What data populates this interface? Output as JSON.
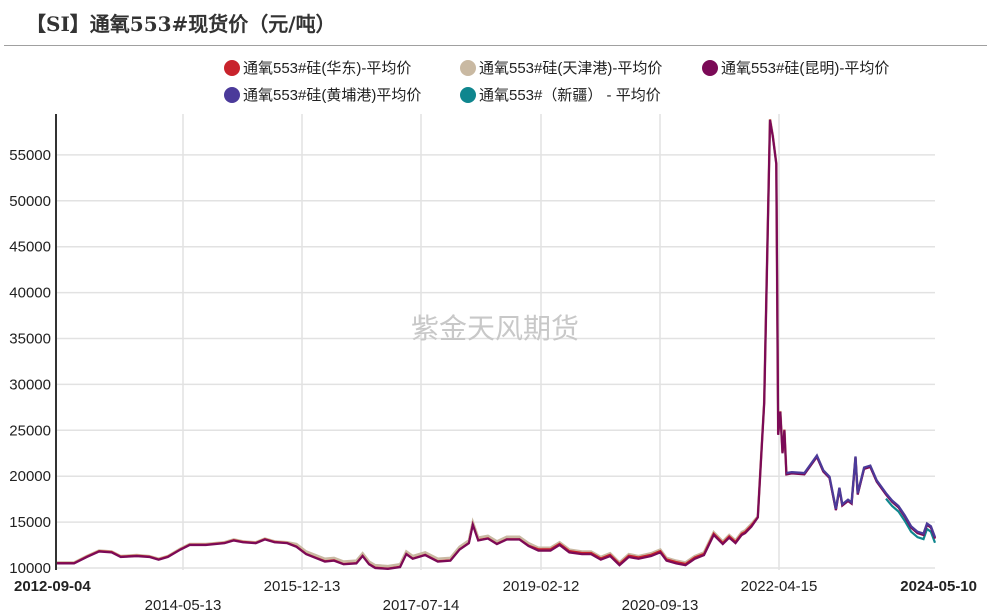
{
  "header": {
    "title": "【SI】通氧553#现货价（元/吨）"
  },
  "watermark": "紫金天风期货",
  "legend": [
    {
      "label": "通氧553#硅(华东)-平均价",
      "color": "#c8232c"
    },
    {
      "label": "通氧553#硅(天津港)-平均价",
      "color": "#c9b9a2"
    },
    {
      "label": "通氧553#硅(昆明)-平均价",
      "color": "#7b0a57"
    },
    {
      "label": "通氧553#硅(黄埔港)平均价",
      "color": "#4b3a9a"
    },
    {
      "label": "通氧553#（新疆） - 平均价",
      "color": "#0f868e"
    }
  ],
  "axes": {
    "y_ticks": [
      "10000",
      "15000",
      "20000",
      "25000",
      "30000",
      "35000",
      "40000",
      "45000",
      "50000",
      "55000"
    ],
    "x_ticks_row1": [
      {
        "label": "2012-09-04",
        "bold": true
      },
      {
        "label": "2015-12-13",
        "bold": false
      },
      {
        "label": "2019-02-12",
        "bold": false
      },
      {
        "label": "2022-04-15",
        "bold": false
      },
      {
        "label": "2024-05-10",
        "bold": true
      }
    ],
    "x_ticks_row2": [
      {
        "label": "2014-05-13"
      },
      {
        "label": "2017-07-14"
      },
      {
        "label": "2020-09-13"
      }
    ]
  },
  "chart_data": {
    "type": "line",
    "title": "【SI】通氧553#现货价（元/吨）",
    "xlabel": "",
    "ylabel": "元/吨",
    "ylim": [
      10000,
      59000
    ],
    "xlim": [
      "2012-09-04",
      "2024-05-10"
    ],
    "grid": true,
    "legend_position": "top",
    "x_tick_labels": [
      "2012-09-04",
      "2014-05-13",
      "2015-12-13",
      "2017-07-14",
      "2019-02-12",
      "2020-09-13",
      "2022-04-15",
      "2024-05-10"
    ],
    "series": [
      {
        "name": "通氧553#硅(昆明)-平均价",
        "color": "#7b0a57",
        "points": [
          [
            "2012-09-04",
            10500
          ],
          [
            "2012-12-01",
            10500
          ],
          [
            "2013-02-01",
            11200
          ],
          [
            "2013-04-01",
            11800
          ],
          [
            "2013-06-01",
            11700
          ],
          [
            "2013-07-15",
            11200
          ],
          [
            "2013-10-01",
            11300
          ],
          [
            "2013-12-01",
            11200
          ],
          [
            "2014-01-15",
            10900
          ],
          [
            "2014-03-01",
            11200
          ],
          [
            "2014-05-01",
            12000
          ],
          [
            "2014-06-15",
            12500
          ],
          [
            "2014-09-01",
            12500
          ],
          [
            "2014-12-01",
            12700
          ],
          [
            "2015-01-15",
            13000
          ],
          [
            "2015-03-01",
            12800
          ],
          [
            "2015-05-01",
            12700
          ],
          [
            "2015-06-15",
            13100
          ],
          [
            "2015-08-01",
            12800
          ],
          [
            "2015-10-01",
            12700
          ],
          [
            "2015-11-15",
            12300
          ],
          [
            "2016-01-01",
            11500
          ],
          [
            "2016-02-15",
            11100
          ],
          [
            "2016-04-01",
            10700
          ],
          [
            "2016-05-15",
            10800
          ],
          [
            "2016-07-01",
            10400
          ],
          [
            "2016-09-01",
            10500
          ],
          [
            "2016-10-01",
            11300
          ],
          [
            "2016-11-01",
            10400
          ],
          [
            "2016-12-01",
            10000
          ],
          [
            "2017-02-01",
            9900
          ],
          [
            "2017-04-01",
            10100
          ],
          [
            "2017-05-01",
            11500
          ],
          [
            "2017-06-01",
            11000
          ],
          [
            "2017-08-01",
            11400
          ],
          [
            "2017-10-01",
            10700
          ],
          [
            "2017-12-01",
            10800
          ],
          [
            "2018-01-15",
            12000
          ],
          [
            "2018-03-01",
            12700
          ],
          [
            "2018-03-20",
            14700
          ],
          [
            "2018-04-15",
            13000
          ],
          [
            "2018-06-01",
            13200
          ],
          [
            "2018-07-15",
            12600
          ],
          [
            "2018-09-01",
            13100
          ],
          [
            "2018-11-01",
            13100
          ],
          [
            "2018-12-15",
            12400
          ],
          [
            "2019-02-01",
            11900
          ],
          [
            "2019-04-01",
            11900
          ],
          [
            "2019-05-15",
            12500
          ],
          [
            "2019-07-01",
            11700
          ],
          [
            "2019-09-01",
            11500
          ],
          [
            "2019-10-15",
            11500
          ],
          [
            "2019-12-01",
            10900
          ],
          [
            "2020-01-15",
            11300
          ],
          [
            "2020-03-01",
            10300
          ],
          [
            "2020-04-15",
            11200
          ],
          [
            "2020-06-01",
            11000
          ],
          [
            "2020-08-01",
            11300
          ],
          [
            "2020-09-15",
            11700
          ],
          [
            "2020-10-15",
            10800
          ],
          [
            "2020-12-01",
            10500
          ],
          [
            "2021-01-15",
            10300
          ],
          [
            "2021-03-01",
            11000
          ],
          [
            "2021-04-15",
            11400
          ],
          [
            "2021-06-01",
            13600
          ],
          [
            "2021-07-15",
            12600
          ],
          [
            "2021-08-15",
            13300
          ],
          [
            "2021-09-15",
            12700
          ],
          [
            "2021-10-15",
            13600
          ],
          [
            "2021-11-01",
            13800
          ],
          [
            "2021-12-01",
            14500
          ],
          [
            "2022-01-01",
            15500
          ],
          [
            "2022-02-01",
            28000
          ],
          [
            "2022-03-01",
            58800
          ],
          [
            "2022-03-15",
            57000
          ],
          [
            "2022-04-01",
            54000
          ],
          [
            "2022-04-10",
            24500
          ],
          [
            "2022-04-20",
            27000
          ],
          [
            "2022-05-01",
            22500
          ],
          [
            "2022-05-10",
            25000
          ],
          [
            "2022-05-20",
            20200
          ],
          [
            "2022-06-15",
            20300
          ],
          [
            "2022-08-15",
            20200
          ],
          [
            "2022-10-15",
            22100
          ],
          [
            "2022-11-15",
            20500
          ],
          [
            "2022-12-15",
            19800
          ],
          [
            "2023-01-15",
            16300
          ],
          [
            "2023-02-01",
            18600
          ],
          [
            "2023-02-15",
            16800
          ],
          [
            "2023-03-15",
            17300
          ],
          [
            "2023-04-01",
            17000
          ],
          [
            "2023-04-20",
            22000
          ],
          [
            "2023-05-01",
            18000
          ],
          [
            "2023-06-01",
            20800
          ],
          [
            "2023-07-01",
            21000
          ],
          [
            "2023-08-01",
            19400
          ],
          [
            "2023-09-15",
            18000
          ],
          [
            "2023-10-15",
            17200
          ],
          [
            "2023-11-15",
            16600
          ],
          [
            "2023-12-15",
            15600
          ],
          [
            "2024-01-15",
            14400
          ],
          [
            "2024-02-15",
            13800
          ],
          [
            "2024-03-15",
            13600
          ],
          [
            "2024-04-01",
            14700
          ],
          [
            "2024-04-20",
            14400
          ],
          [
            "2024-05-10",
            13200
          ]
        ]
      },
      {
        "name": "通氧553#硅(华东)-平均价",
        "color": "#c8232c",
        "note": "closely tracks 昆明 series; slightly higher in 2019-2021"
      },
      {
        "name": "通氧553#硅(天津港)-平均价",
        "color": "#c9b9a2",
        "note": "closely tracks 昆明 series; ~200-500 higher 2016-2021"
      },
      {
        "name": "通氧553#硅(黄埔港)平均价",
        "color": "#4b3a9a",
        "note": "starts ~2022-05; tracks 昆明, ends ~13300"
      },
      {
        "name": "通氧553#（新疆） - 平均价",
        "color": "#0f868e",
        "note": "starts ~2023-09; ~300-500 lower, ends ~12800"
      }
    ]
  }
}
